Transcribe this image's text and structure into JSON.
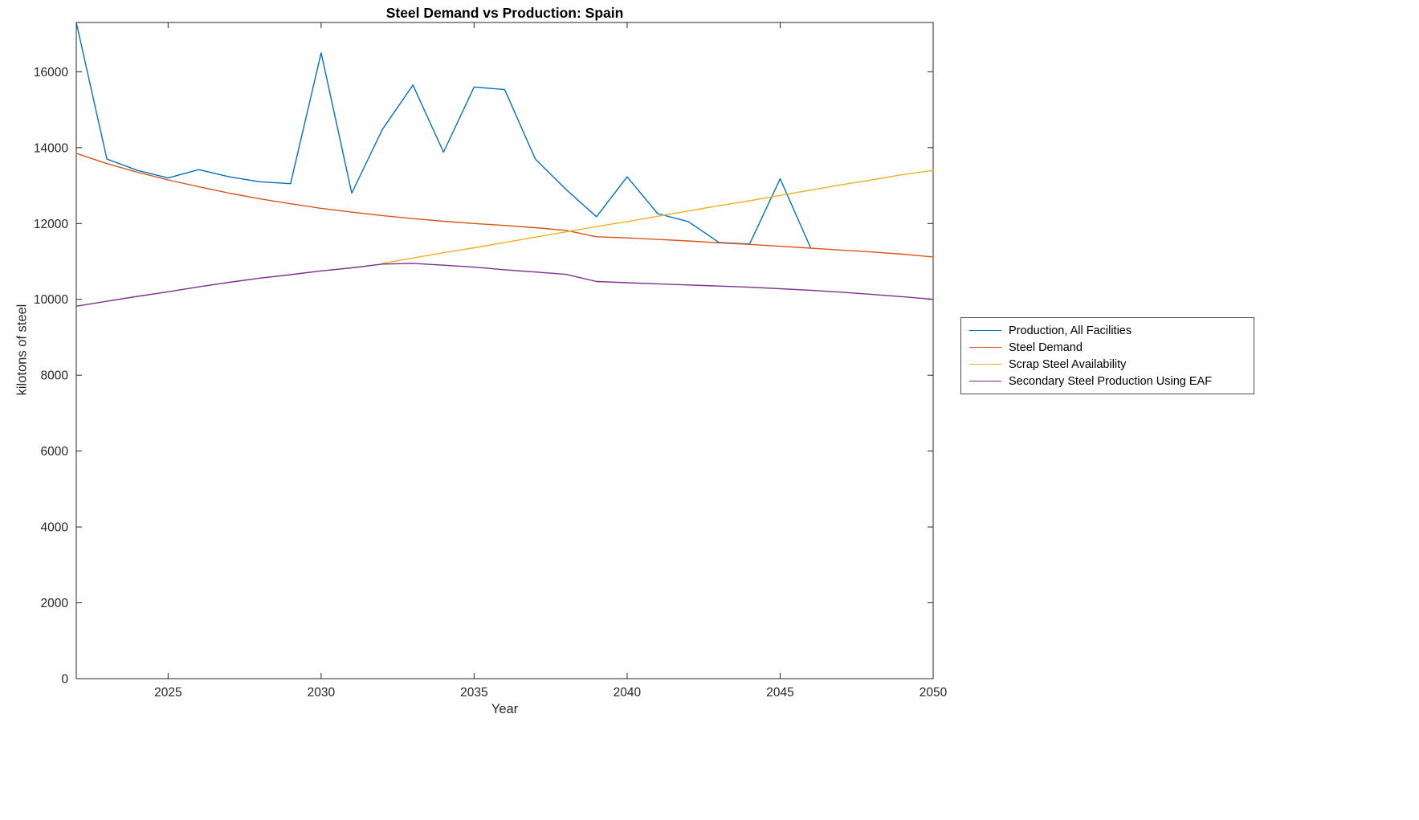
{
  "chart_data": {
    "type": "line",
    "title": "Steel Demand vs Production: Spain",
    "xlabel": "Year",
    "ylabel": "kilotons of steel",
    "xlim": [
      2022,
      2050
    ],
    "ylim": [
      0,
      17300
    ],
    "xticks": [
      2025,
      2030,
      2035,
      2040,
      2045,
      2050
    ],
    "yticks": [
      0,
      2000,
      4000,
      6000,
      8000,
      10000,
      12000,
      14000,
      16000
    ],
    "grid": false,
    "legend_position": "right-outside",
    "axis_color": "#262626",
    "series": [
      {
        "name": "Production, All Facilities",
        "color": "#0072BD",
        "x": [
          2022,
          2023,
          2024,
          2025,
          2026,
          2027,
          2028,
          2029,
          2030,
          2031,
          2032,
          2033,
          2034,
          2035,
          2036,
          2037,
          2038,
          2039,
          2040,
          2041,
          2042,
          2043,
          2044,
          2045,
          2046
        ],
        "y": [
          17300,
          13700,
          13400,
          13200,
          13420,
          13230,
          13100,
          13050,
          16500,
          12800,
          14480,
          15650,
          13880,
          15600,
          15530,
          13700,
          12900,
          12180,
          13230,
          12260,
          12050,
          11500,
          11460,
          13180,
          11350
        ]
      },
      {
        "name": "Steel Demand",
        "color": "#D95319",
        "x": [
          2022,
          2023,
          2024,
          2025,
          2026,
          2027,
          2028,
          2029,
          2030,
          2031,
          2032,
          2033,
          2034,
          2035,
          2036,
          2037,
          2038,
          2039,
          2040,
          2041,
          2042,
          2043,
          2044,
          2045,
          2046,
          2047,
          2048,
          2049,
          2050
        ],
        "y": [
          13850,
          13580,
          13350,
          13150,
          12970,
          12800,
          12650,
          12520,
          12400,
          12300,
          12210,
          12130,
          12060,
          12000,
          11950,
          11890,
          11820,
          11650,
          11620,
          11580,
          11540,
          11490,
          11450,
          11400,
          11350,
          11300,
          11250,
          11190,
          11120
        ]
      },
      {
        "name": "Scrap Steel Availability",
        "color": "#EDB120",
        "x": [
          2032,
          2033,
          2034,
          2035,
          2036,
          2037,
          2038,
          2039,
          2040,
          2041,
          2042,
          2043,
          2044,
          2045,
          2046,
          2047,
          2048,
          2049,
          2050
        ],
        "y": [
          10950,
          11090,
          11230,
          11360,
          11500,
          11640,
          11780,
          11920,
          12050,
          12190,
          12330,
          12470,
          12600,
          12740,
          12880,
          13020,
          13150,
          13290,
          13400
        ]
      },
      {
        "name": "Secondary Steel Production Using EAF",
        "color": "#7E2F8E",
        "x": [
          2022,
          2023,
          2024,
          2025,
          2026,
          2027,
          2028,
          2029,
          2030,
          2031,
          2032,
          2033,
          2034,
          2035,
          2036,
          2037,
          2038,
          2039,
          2040,
          2041,
          2042,
          2043,
          2044,
          2045,
          2046,
          2047,
          2048,
          2049,
          2050
        ],
        "y": [
          9820,
          9950,
          10080,
          10200,
          10330,
          10450,
          10560,
          10650,
          10750,
          10830,
          10930,
          10950,
          10900,
          10850,
          10780,
          10720,
          10660,
          10470,
          10440,
          10410,
          10380,
          10350,
          10320,
          10280,
          10240,
          10190,
          10130,
          10070,
          10000
        ]
      }
    ]
  }
}
